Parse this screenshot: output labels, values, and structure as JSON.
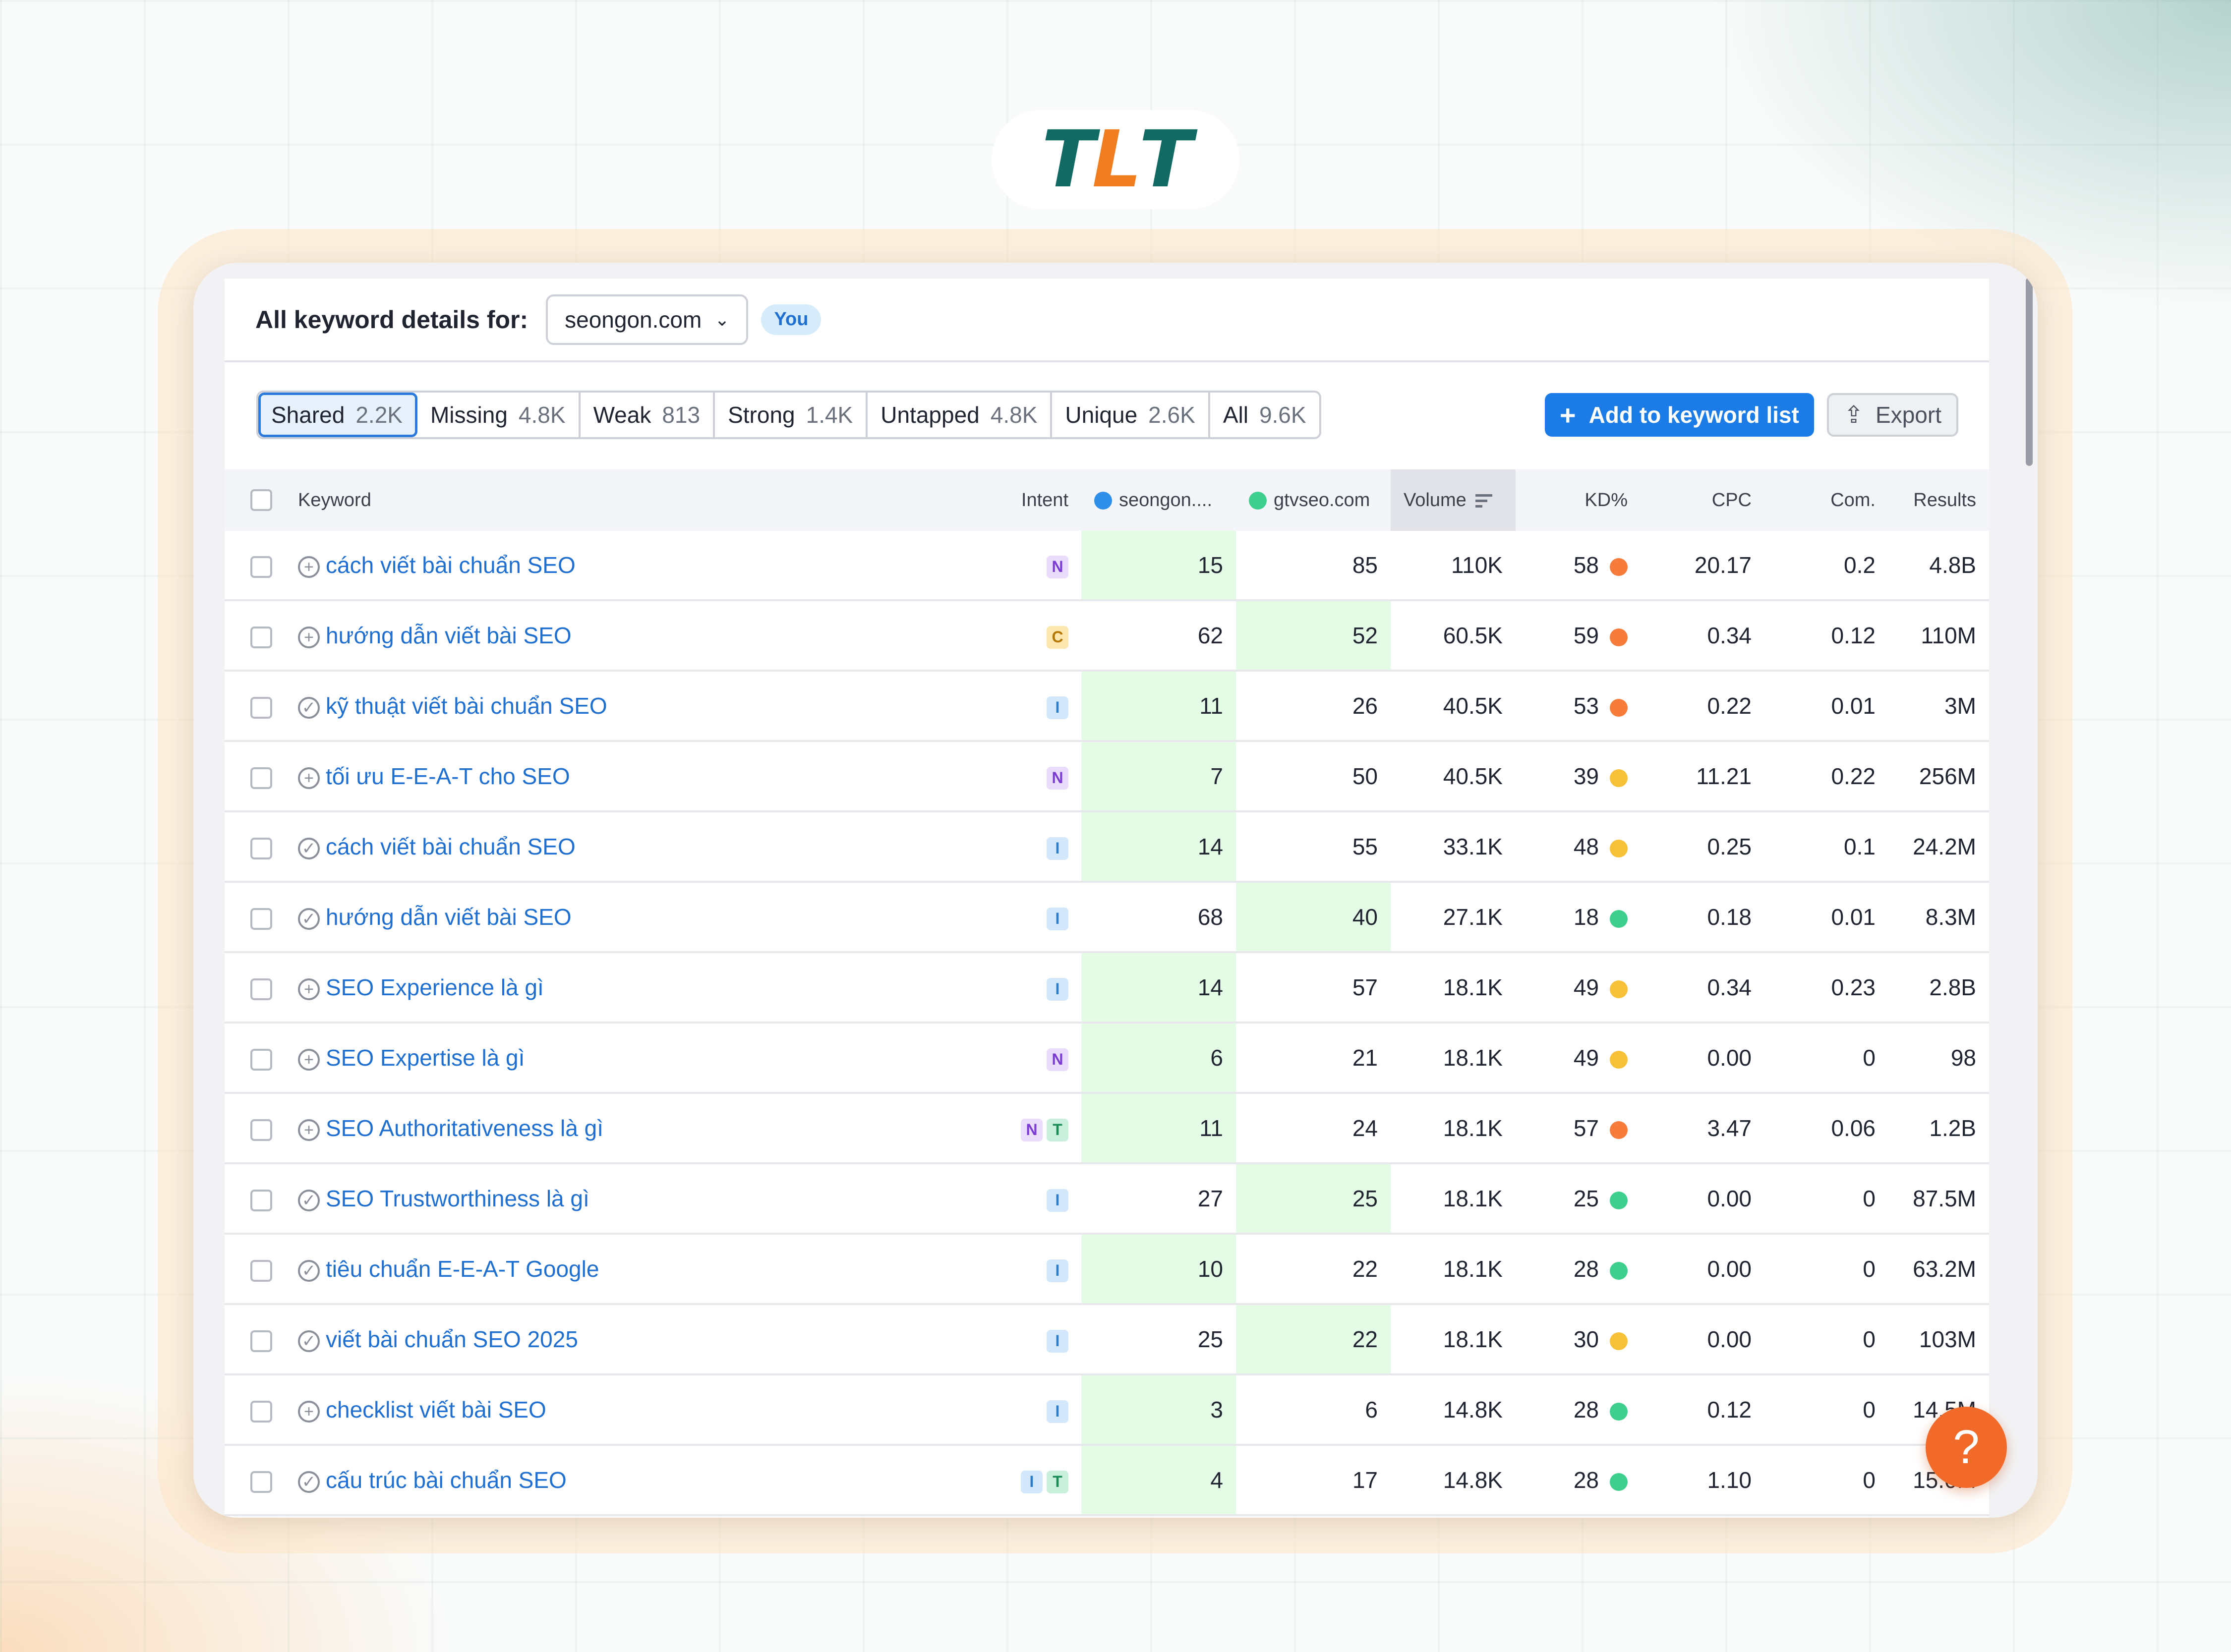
{
  "logo": {
    "letters": [
      {
        "char": "T",
        "color": "#116a63"
      },
      {
        "char": "L",
        "color": "#f07d1f"
      },
      {
        "char": "T",
        "color": "#116a63"
      }
    ]
  },
  "header": {
    "title": "All keyword details for:",
    "domain": "seongon.com",
    "you_badge": "You"
  },
  "tabs": [
    {
      "label": "Shared",
      "count": "2.2K",
      "active": true
    },
    {
      "label": "Missing",
      "count": "4.8K",
      "active": false
    },
    {
      "label": "Weak",
      "count": "813",
      "active": false
    },
    {
      "label": "Strong",
      "count": "1.4K",
      "active": false
    },
    {
      "label": "Untapped",
      "count": "4.8K",
      "active": false
    },
    {
      "label": "Unique",
      "count": "2.6K",
      "active": false
    },
    {
      "label": "All",
      "count": "9.6K",
      "active": false
    }
  ],
  "actions": {
    "add_label": "Add to keyword list",
    "export_label": "Export"
  },
  "table": {
    "columns": {
      "keyword": "Keyword",
      "intent": "Intent",
      "domain1": "seongon....",
      "domain2": "gtvseo.com",
      "volume": "Volume",
      "kd": "KD%",
      "cpc": "CPC",
      "com": "Com.",
      "results": "Results"
    },
    "domain1_color": "#2f8fe8",
    "domain2_color": "#3ecf8e",
    "kd_colors": {
      "high": "#f77c3c",
      "medium": "#f7c137",
      "low": "#3ecf8e"
    },
    "rows": [
      {
        "keyword": "cách viết bài chuẩn SEO",
        "icon": "plus",
        "intents": [
          "N"
        ],
        "d1": "15",
        "d2": "85",
        "best": 1,
        "volume": "110K",
        "kd": "58",
        "kd_level": "high",
        "cpc": "20.17",
        "com": "0.2",
        "results": "4.8B"
      },
      {
        "keyword": "hướng dẫn viết bài SEO",
        "icon": "plus",
        "intents": [
          "C"
        ],
        "d1": "62",
        "d2": "52",
        "best": 2,
        "volume": "60.5K",
        "kd": "59",
        "kd_level": "high",
        "cpc": "0.34",
        "com": "0.12",
        "results": "110M"
      },
      {
        "keyword": "kỹ thuật viết bài chuẩn SEO",
        "icon": "check",
        "intents": [
          "I"
        ],
        "d1": "11",
        "d2": "26",
        "best": 1,
        "volume": "40.5K",
        "kd": "53",
        "kd_level": "high",
        "cpc": "0.22",
        "com": "0.01",
        "results": "3M"
      },
      {
        "keyword": "tối ưu E-E-A-T cho SEO",
        "icon": "plus",
        "intents": [
          "N"
        ],
        "d1": "7",
        "d2": "50",
        "best": 1,
        "volume": "40.5K",
        "kd": "39",
        "kd_level": "medium",
        "cpc": "11.21",
        "com": "0.22",
        "results": "256M"
      },
      {
        "keyword": "cách viết bài chuẩn SEO",
        "icon": "check",
        "intents": [
          "I"
        ],
        "d1": "14",
        "d2": "55",
        "best": 1,
        "volume": "33.1K",
        "kd": "48",
        "kd_level": "medium",
        "cpc": "0.25",
        "com": "0.1",
        "results": "24.2M"
      },
      {
        "keyword": "hướng dẫn viết bài SEO",
        "icon": "check",
        "intents": [
          "I"
        ],
        "d1": "68",
        "d2": "40",
        "best": 2,
        "volume": "27.1K",
        "kd": "18",
        "kd_level": "low",
        "cpc": "0.18",
        "com": "0.01",
        "results": "8.3M"
      },
      {
        "keyword": "SEO Experience là gì",
        "icon": "plus",
        "intents": [
          "I"
        ],
        "d1": "14",
        "d2": "57",
        "best": 1,
        "volume": "18.1K",
        "kd": "49",
        "kd_level": "medium",
        "cpc": "0.34",
        "com": "0.23",
        "results": "2.8B"
      },
      {
        "keyword": "SEO Expertise là gì",
        "icon": "plus",
        "intents": [
          "N"
        ],
        "d1": "6",
        "d2": "21",
        "best": 1,
        "volume": "18.1K",
        "kd": "49",
        "kd_level": "medium",
        "cpc": "0.00",
        "com": "0",
        "results": "98"
      },
      {
        "keyword": "SEO Authoritativeness là gì",
        "icon": "plus",
        "intents": [
          "N",
          "T"
        ],
        "d1": "11",
        "d2": "24",
        "best": 1,
        "volume": "18.1K",
        "kd": "57",
        "kd_level": "high",
        "cpc": "3.47",
        "com": "0.06",
        "results": "1.2B"
      },
      {
        "keyword": "SEO Trustworthiness là gì",
        "icon": "check",
        "intents": [
          "I"
        ],
        "d1": "27",
        "d2": "25",
        "best": 2,
        "volume": "18.1K",
        "kd": "25",
        "kd_level": "low",
        "cpc": "0.00",
        "com": "0",
        "results": "87.5M"
      },
      {
        "keyword": "tiêu chuẩn E-E-A-T Google",
        "icon": "check",
        "intents": [
          "I"
        ],
        "d1": "10",
        "d2": "22",
        "best": 1,
        "volume": "18.1K",
        "kd": "28",
        "kd_level": "low",
        "cpc": "0.00",
        "com": "0",
        "results": "63.2M"
      },
      {
        "keyword": "viết bài chuẩn SEO 2025",
        "icon": "check",
        "intents": [
          "I"
        ],
        "d1": "25",
        "d2": "22",
        "best": 2,
        "volume": "18.1K",
        "kd": "30",
        "kd_level": "medium",
        "cpc": "0.00",
        "com": "0",
        "results": "103M"
      },
      {
        "keyword": "checklist viết bài SEO",
        "icon": "plus",
        "intents": [
          "I"
        ],
        "d1": "3",
        "d2": "6",
        "best": 1,
        "volume": "14.8K",
        "kd": "28",
        "kd_level": "low",
        "cpc": "0.12",
        "com": "0",
        "results": "14.5M"
      },
      {
        "keyword": "cấu trúc bài chuẩn SEO",
        "icon": "check",
        "intents": [
          "I",
          "T"
        ],
        "d1": "4",
        "d2": "17",
        "best": 1,
        "volume": "14.8K",
        "kd": "28",
        "kd_level": "low",
        "cpc": "1.10",
        "com": "0",
        "results": "15.0M"
      }
    ]
  },
  "help": {
    "label": "?"
  }
}
